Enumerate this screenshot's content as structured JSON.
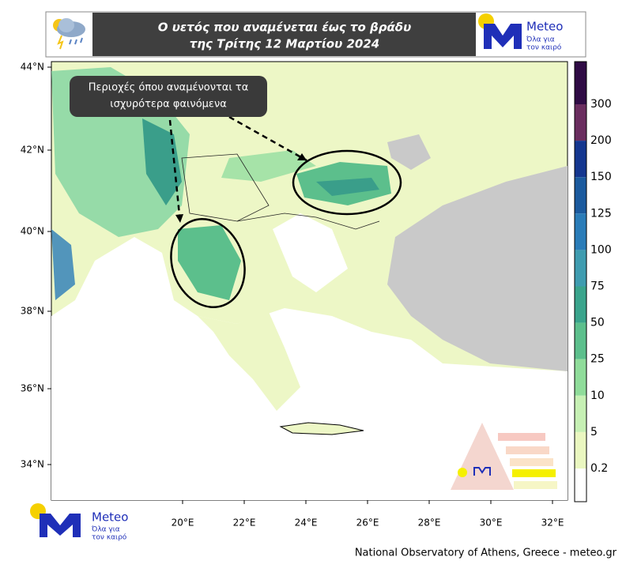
{
  "header": {
    "title_lines": [
      "Ο υετός που αναμένεται έως το βράδυ",
      "της Τρίτης 12 Μαρτίου 2024"
    ]
  },
  "logo": {
    "brand": "Meteo",
    "tagline_lines": [
      "Όλα για",
      "τον καιρό"
    ]
  },
  "annotation": {
    "lines": [
      "Περιοχές όπου αναμένονται τα",
      "ισχυρότερα φαινόμενα"
    ]
  },
  "map": {
    "lat_labels": [
      "44°N",
      "42°N",
      "40°N",
      "38°N",
      "36°N",
      "34°N"
    ],
    "lon_labels": [
      "20°E",
      "22°E",
      "24°E",
      "26°E",
      "28°E",
      "30°E",
      "32°E"
    ]
  },
  "colorbar": {
    "labels": [
      "300",
      "200",
      "150",
      "125",
      "100",
      "75",
      "50",
      "25",
      "10",
      "5",
      "0.2"
    ]
  },
  "footer": "National Observatory of Athens, Greece - meteo.gr"
}
